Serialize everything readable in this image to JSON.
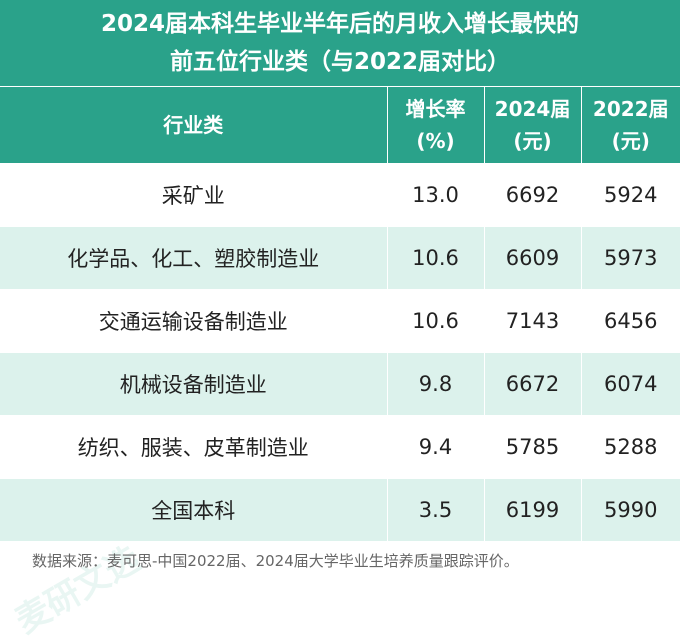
{
  "title": {
    "line1": "2024届本科生毕业半年后的月收入增长最快的",
    "line2": "前五位行业类（与2022届对比）"
  },
  "table": {
    "headers": [
      {
        "line1": "行业类",
        "line2": ""
      },
      {
        "line1": "增长率",
        "line2": "(%)"
      },
      {
        "line1": "2024届",
        "line2": "(元)"
      },
      {
        "line1": "2022届",
        "line2": "(元)"
      }
    ],
    "rows": [
      [
        "采矿业",
        "13.0",
        "6692",
        "5924"
      ],
      [
        "化学品、化工、塑胶制造业",
        "10.6",
        "6609",
        "5973"
      ],
      [
        "交通运输设备制造业",
        "10.6",
        "7143",
        "6456"
      ],
      [
        "机械设备制造业",
        "9.8",
        "6672",
        "6074"
      ],
      [
        "纺织、服装、皮革制造业",
        "9.4",
        "5785",
        "5288"
      ],
      [
        "全国本科",
        "3.5",
        "6199",
        "5990"
      ]
    ]
  },
  "footer": "数据来源：麦可思-中国2022届、2024届大学毕业生培养质量跟踪评价。",
  "watermark": "麦研文选",
  "colors": {
    "header_bg": "#2aa28a",
    "row_alt_bg": "#dcf2ec"
  }
}
